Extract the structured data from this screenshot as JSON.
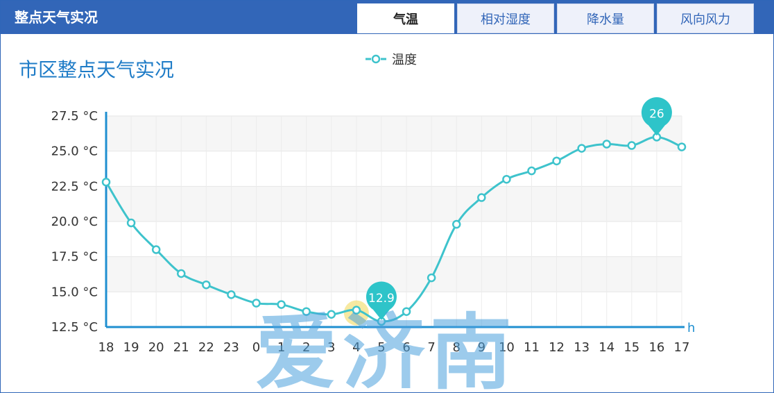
{
  "header": {
    "title": "整点天气实况",
    "tabs": [
      {
        "label": "气温",
        "active": true
      },
      {
        "label": "相对湿度",
        "active": false
      },
      {
        "label": "降水量",
        "active": false
      },
      {
        "label": "风向风力",
        "active": false
      }
    ]
  },
  "panel": {
    "title": "市区整点天气实况"
  },
  "watermark": "爱济南",
  "chart_data": {
    "type": "line",
    "title": "",
    "xlabel": "h",
    "ylabel": "",
    "categories": [
      "18",
      "19",
      "20",
      "21",
      "22",
      "23",
      "0",
      "1",
      "2",
      "3",
      "4",
      "5",
      "6",
      "7",
      "8",
      "9",
      "10",
      "11",
      "12",
      "13",
      "14",
      "15",
      "16",
      "17"
    ],
    "series": [
      {
        "name": "温度",
        "values": [
          22.8,
          19.9,
          18.0,
          16.3,
          15.5,
          14.8,
          14.2,
          14.1,
          13.6,
          13.4,
          13.7,
          12.9,
          13.6,
          16.0,
          19.8,
          21.7,
          23.0,
          23.6,
          24.3,
          25.2,
          25.5,
          25.4,
          26.0,
          25.3
        ]
      }
    ],
    "ylim": [
      12.5,
      27.5
    ],
    "yticks": [
      12.5,
      15.0,
      17.5,
      20.0,
      22.5,
      25.0,
      27.5
    ],
    "ytick_labels": [
      "12.5 °C",
      "15.0 °C",
      "17.5 °C",
      "20.0 °C",
      "22.5 °C",
      "25.0 °C",
      "27.5 °C"
    ],
    "grid": true,
    "legend": "top-center",
    "markers": [
      {
        "label": "12.9",
        "category": "5",
        "value": 12.9,
        "kind": "min"
      },
      {
        "label": "26",
        "category": "16",
        "value": 26.0,
        "kind": "max"
      }
    ],
    "highlight": {
      "category": "4",
      "value": 13.7
    },
    "colors": {
      "line": "#3ec3cc",
      "axis": "#1f8fd0",
      "marker": "#2ec4c9",
      "highlight": "#f5e38a"
    }
  }
}
